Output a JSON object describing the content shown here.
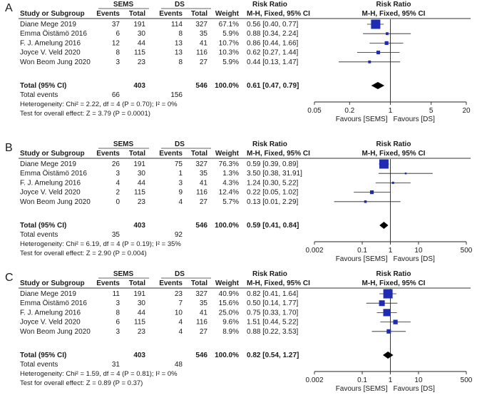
{
  "panels": [
    {
      "label": "A",
      "head": {
        "study": "Study or Subgroup",
        "g1": "SEMS",
        "g2": "DS",
        "events": "Events",
        "total": "Total",
        "weight": "Weight",
        "rr": "Risk Ratio",
        "method": "M-H, Fixed, 95% CI"
      },
      "rows": [
        {
          "study": "Diane Mege 2019",
          "e1": "37",
          "t1": "191",
          "e2": "114",
          "t2": "327",
          "w": "67.1%",
          "ci": "0.56 [0.40, 0.77]"
        },
        {
          "study": "Emma Öistämö 2016",
          "e1": "6",
          "t1": "30",
          "e2": "8",
          "t2": "35",
          "w": "5.9%",
          "ci": "0.88 [0.34, 2.24]"
        },
        {
          "study": "F. J. Amelung 2016",
          "e1": "12",
          "t1": "44",
          "e2": "13",
          "t2": "41",
          "w": "10.7%",
          "ci": "0.86 [0.44, 1.66]"
        },
        {
          "study": "Joyce V. Veld 2020",
          "e1": "8",
          "t1": "115",
          "e2": "13",
          "t2": "116",
          "w": "10.3%",
          "ci": "0.62 [0.27, 1.44]"
        },
        {
          "study": "Won Beom Jung 2020",
          "e1": "3",
          "t1": "23",
          "e2": "8",
          "t2": "27",
          "w": "5.9%",
          "ci": "0.44 [0.13, 1.47]"
        }
      ],
      "total": {
        "label": "Total (95% CI)",
        "t1": "403",
        "t2": "546",
        "w": "100.0%",
        "ci": "0.61 [0.47, 0.79]"
      },
      "events": {
        "label": "Total events",
        "e1": "66",
        "e2": "156"
      },
      "het": "Heterogeneity: Chi² = 2.22, df = 4 (P = 0.70); I² = 0%",
      "overall": "Test for overall effect: Z = 3.79 (P = 0.0001)",
      "axis": {
        "favours_left": "Favours [SEMS]",
        "favours_right": "Favours [DS]"
      }
    },
    {
      "label": "B",
      "head": {
        "study": "Study or Subgroup",
        "g1": "SEMS",
        "g2": "DS",
        "events": "Events",
        "total": "Total",
        "weight": "Weight",
        "rr": "Risk Ratio",
        "method": "M-H, Fixed, 95% CI"
      },
      "rows": [
        {
          "study": "Diane Mege 2019",
          "e1": "26",
          "t1": "191",
          "e2": "75",
          "t2": "327",
          "w": "76.3%",
          "ci": "0.59 [0.39, 0.89]"
        },
        {
          "study": "Emma Öistämö 2016",
          "e1": "3",
          "t1": "30",
          "e2": "1",
          "t2": "35",
          "w": "1.3%",
          "ci": "3.50 [0.38, 31.91]"
        },
        {
          "study": "F. J. Amelung 2016",
          "e1": "4",
          "t1": "44",
          "e2": "3",
          "t2": "41",
          "w": "4.3%",
          "ci": "1.24 [0.30, 5.22]"
        },
        {
          "study": "Joyce V. Veld 2020",
          "e1": "2",
          "t1": "115",
          "e2": "9",
          "t2": "116",
          "w": "12.4%",
          "ci": "0.22 [0.05, 1.02]"
        },
        {
          "study": "Won Beom Jung 2020",
          "e1": "0",
          "t1": "23",
          "e2": "4",
          "t2": "27",
          "w": "5.7%",
          "ci": "0.13 [0.01, 2.29]"
        }
      ],
      "total": {
        "label": "Total (95% CI)",
        "t1": "403",
        "t2": "546",
        "w": "100.0%",
        "ci": "0.59 [0.41, 0.84]"
      },
      "events": {
        "label": "Total events",
        "e1": "35",
        "e2": "92"
      },
      "het": "Heterogeneity: Chi² = 6.19, df = 4 (P = 0.19); I² = 35%",
      "overall": "Test for overall effect: Z = 2.90 (P = 0.004)",
      "axis": {
        "favours_left": "Favours [SEMS]",
        "favours_right": "Favours [DS]"
      }
    },
    {
      "label": "C",
      "head": {
        "study": "Study or Subgroup",
        "g1": "SEMS",
        "g2": "DS",
        "events": "Events",
        "total": "Total",
        "weight": "Weight",
        "rr": "Risk Ratio",
        "method": "M-H, Fixed, 95% CI"
      },
      "rows": [
        {
          "study": "Diane Mege 2019",
          "e1": "11",
          "t1": "191",
          "e2": "23",
          "t2": "327",
          "w": "40.9%",
          "ci": "0.82 [0.41, 1.64]"
        },
        {
          "study": "Emma Öistämö 2016",
          "e1": "3",
          "t1": "30",
          "e2": "7",
          "t2": "35",
          "w": "15.6%",
          "ci": "0.50 [0.14, 1.77]"
        },
        {
          "study": "F. J. Amelung 2016",
          "e1": "8",
          "t1": "44",
          "e2": "10",
          "t2": "41",
          "w": "25.0%",
          "ci": "0.75 [0.33, 1.70]"
        },
        {
          "study": "Joyce V. Veld 2020",
          "e1": "6",
          "t1": "115",
          "e2": "4",
          "t2": "116",
          "w": "9.6%",
          "ci": "1.51 [0.44, 5.22]"
        },
        {
          "study": "Won Beom Jung 2020",
          "e1": "3",
          "t1": "23",
          "e2": "4",
          "t2": "27",
          "w": "8.9%",
          "ci": "0.88 [0.22, 3.53]"
        }
      ],
      "total": {
        "label": "Total (95% CI)",
        "t1": "403",
        "t2": "546",
        "w": "100.0%",
        "ci": "0.82 [0.54, 1.27]"
      },
      "events": {
        "label": "Total events",
        "e1": "31",
        "e2": "48"
      },
      "het": "Heterogeneity: Chi² = 1.59, df = 4 (P = 0.81); I² = 0%",
      "overall": "Test for overall effect: Z = 0.89 (P = 0.37)",
      "axis": {
        "favours_left": "Favours [SEMS]",
        "favours_right": "Favours [DS]"
      }
    }
  ],
  "chart_data": [
    {
      "type": "forest",
      "panel": "A",
      "x_scale": "log",
      "xlim": [
        0.05,
        20
      ],
      "ticks": [
        0.05,
        0.2,
        1,
        5,
        20
      ],
      "tick_labels": [
        "0.05",
        "0.2",
        "1",
        "5",
        "20"
      ],
      "reference_line": 1,
      "studies": [
        {
          "name": "Diane Mege 2019",
          "rr": 0.56,
          "lo": 0.4,
          "hi": 0.77,
          "weight": 67.1
        },
        {
          "name": "Emma Öistämö 2016",
          "rr": 0.88,
          "lo": 0.34,
          "hi": 2.24,
          "weight": 5.9
        },
        {
          "name": "F. J. Amelung 2016",
          "rr": 0.86,
          "lo": 0.44,
          "hi": 1.66,
          "weight": 10.7
        },
        {
          "name": "Joyce V. Veld 2020",
          "rr": 0.62,
          "lo": 0.27,
          "hi": 1.44,
          "weight": 10.3
        },
        {
          "name": "Won Beom Jung 2020",
          "rr": 0.44,
          "lo": 0.13,
          "hi": 1.47,
          "weight": 5.9
        }
      ],
      "pooled": {
        "rr": 0.61,
        "lo": 0.47,
        "hi": 0.79
      },
      "colors": {
        "square": "#1f2bb3",
        "diamond": "#000000"
      }
    },
    {
      "type": "forest",
      "panel": "B",
      "x_scale": "log",
      "xlim": [
        0.002,
        500
      ],
      "ticks": [
        0.002,
        0.1,
        1,
        10,
        500
      ],
      "tick_labels": [
        "0.002",
        "0.1",
        "1",
        "10",
        "500"
      ],
      "reference_line": 1,
      "studies": [
        {
          "name": "Diane Mege 2019",
          "rr": 0.59,
          "lo": 0.39,
          "hi": 0.89,
          "weight": 76.3
        },
        {
          "name": "Emma Öistämö 2016",
          "rr": 3.5,
          "lo": 0.38,
          "hi": 31.91,
          "weight": 1.3
        },
        {
          "name": "F. J. Amelung 2016",
          "rr": 1.24,
          "lo": 0.3,
          "hi": 5.22,
          "weight": 4.3
        },
        {
          "name": "Joyce V. Veld 2020",
          "rr": 0.22,
          "lo": 0.05,
          "hi": 1.02,
          "weight": 12.4
        },
        {
          "name": "Won Beom Jung 2020",
          "rr": 0.13,
          "lo": 0.01,
          "hi": 2.29,
          "weight": 5.7
        }
      ],
      "pooled": {
        "rr": 0.59,
        "lo": 0.41,
        "hi": 0.84
      },
      "colors": {
        "square": "#1f2bb3",
        "diamond": "#000000"
      }
    },
    {
      "type": "forest",
      "panel": "C",
      "x_scale": "log",
      "xlim": [
        0.002,
        500
      ],
      "ticks": [
        0.002,
        0.1,
        1,
        10,
        500
      ],
      "tick_labels": [
        "0.002",
        "0.1",
        "1",
        "10",
        "500"
      ],
      "reference_line": 1,
      "studies": [
        {
          "name": "Diane Mege 2019",
          "rr": 0.82,
          "lo": 0.41,
          "hi": 1.64,
          "weight": 40.9
        },
        {
          "name": "Emma Öistämö 2016",
          "rr": 0.5,
          "lo": 0.14,
          "hi": 1.77,
          "weight": 15.6
        },
        {
          "name": "F. J. Amelung 2016",
          "rr": 0.75,
          "lo": 0.33,
          "hi": 1.7,
          "weight": 25.0
        },
        {
          "name": "Joyce V. Veld 2020",
          "rr": 1.51,
          "lo": 0.44,
          "hi": 5.22,
          "weight": 9.6
        },
        {
          "name": "Won Beom Jung 2020",
          "rr": 0.88,
          "lo": 0.22,
          "hi": 3.53,
          "weight": 8.9
        }
      ],
      "pooled": {
        "rr": 0.82,
        "lo": 0.54,
        "hi": 1.27
      },
      "colors": {
        "square": "#1f2bb3",
        "diamond": "#000000"
      }
    }
  ]
}
